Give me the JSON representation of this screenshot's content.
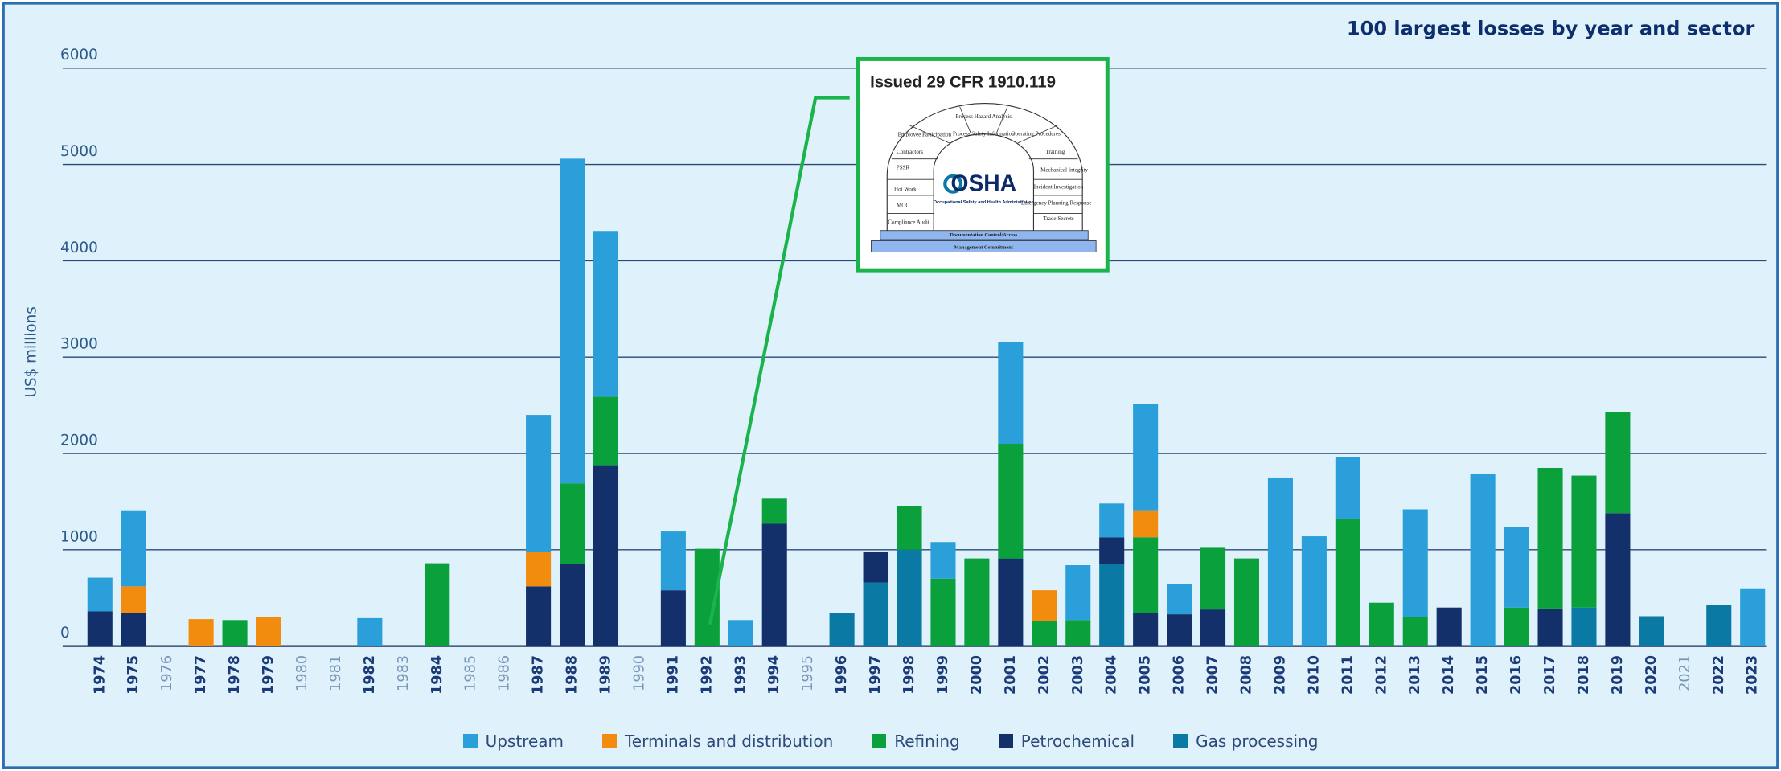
{
  "chart_data": {
    "type": "stacked_bar",
    "title": "100 largest losses by year and sector",
    "y_label": "US$ millions",
    "categories": [
      "1974",
      "1975",
      "1976",
      "1977",
      "1978",
      "1979",
      "1980",
      "1981",
      "1982",
      "1983",
      "1984",
      "1985",
      "1986",
      "1987",
      "1988",
      "1989",
      "1990",
      "1991",
      "1992",
      "1993",
      "1994",
      "1995",
      "1996",
      "1997",
      "1998",
      "1999",
      "2000",
      "2001",
      "2002",
      "2003",
      "2004",
      "2005",
      "2006",
      "2007",
      "2008",
      "2009",
      "2010",
      "2011",
      "2012",
      "2013",
      "2014",
      "2015",
      "2016",
      "2017",
      "2018",
      "2019",
      "2020",
      "2021",
      "2022",
      "2023"
    ],
    "series": [
      {
        "name": "Upstream",
        "color": "#2b9fd9",
        "values": [
          350,
          790,
          0,
          0,
          0,
          0,
          0,
          0,
          290,
          0,
          0,
          0,
          0,
          1420,
          3370,
          1720,
          0,
          610,
          0,
          270,
          0,
          0,
          0,
          0,
          0,
          380,
          0,
          1060,
          0,
          570,
          350,
          1100,
          310,
          0,
          0,
          1750,
          1140,
          640,
          0,
          1120,
          0,
          1790,
          840,
          0,
          0,
          0,
          0,
          0,
          0,
          600
        ]
      },
      {
        "name": "Terminals and distribution",
        "color": "#f28c0f",
        "values": [
          0,
          280,
          0,
          280,
          0,
          300,
          0,
          0,
          0,
          0,
          0,
          0,
          0,
          360,
          0,
          0,
          0,
          0,
          0,
          0,
          0,
          0,
          0,
          0,
          0,
          0,
          0,
          0,
          320,
          0,
          0,
          280,
          0,
          0,
          0,
          0,
          0,
          0,
          0,
          0,
          0,
          0,
          0,
          0,
          0,
          0,
          0,
          0,
          0,
          0
        ]
      },
      {
        "name": "Refining",
        "color": "#0aa03c",
        "values": [
          0,
          0,
          0,
          0,
          270,
          0,
          0,
          0,
          0,
          0,
          860,
          0,
          0,
          0,
          840,
          720,
          0,
          0,
          1010,
          0,
          260,
          0,
          0,
          0,
          450,
          700,
          910,
          1190,
          260,
          270,
          0,
          790,
          0,
          640,
          910,
          0,
          0,
          1320,
          450,
          300,
          0,
          0,
          400,
          1460,
          1370,
          1050,
          0,
          0,
          0,
          0
        ]
      },
      {
        "name": "Petrochemical",
        "color": "#13306b",
        "values": [
          360,
          340,
          0,
          0,
          0,
          0,
          0,
          0,
          0,
          0,
          0,
          0,
          0,
          620,
          850,
          1870,
          0,
          580,
          0,
          0,
          1270,
          0,
          0,
          320,
          0,
          0,
          0,
          910,
          0,
          0,
          280,
          340,
          330,
          380,
          0,
          0,
          0,
          0,
          0,
          0,
          400,
          0,
          0,
          390,
          0,
          1380,
          0,
          0,
          0,
          0
        ]
      },
      {
        "name": "Gas processing",
        "color": "#0a79a3",
        "values": [
          0,
          0,
          0,
          0,
          0,
          0,
          0,
          0,
          0,
          0,
          0,
          0,
          0,
          0,
          0,
          0,
          0,
          0,
          0,
          0,
          0,
          0,
          340,
          660,
          1000,
          0,
          0,
          0,
          0,
          0,
          850,
          0,
          0,
          0,
          0,
          0,
          0,
          0,
          0,
          0,
          0,
          0,
          0,
          0,
          400,
          0,
          310,
          0,
          430,
          0
        ]
      }
    ],
    "ylim": [
      0,
      6000
    ],
    "yticks": [
      0,
      1000,
      2000,
      3000,
      4000,
      5000,
      6000
    ],
    "grid": true,
    "legend": "bottom",
    "annotation": {
      "title": "Issued 29 CFR 1910.119",
      "logo": "OSHA",
      "logo_subtitle": "Occupational Safety and Health Administration",
      "labels": [
        "Process Hazard Analysis",
        "Employee Participation",
        "Process Safety Information",
        "Operating Procedures",
        "Contractors",
        "Training",
        "PSSR",
        "Mechanical Integrity",
        "Hot Work",
        "Incident Investigation",
        "MOC",
        "Emergency Planning Response",
        "Compliance Audit",
        "Trade Secrets",
        "Documentation Control/Access",
        "Management Commitment"
      ]
    }
  }
}
